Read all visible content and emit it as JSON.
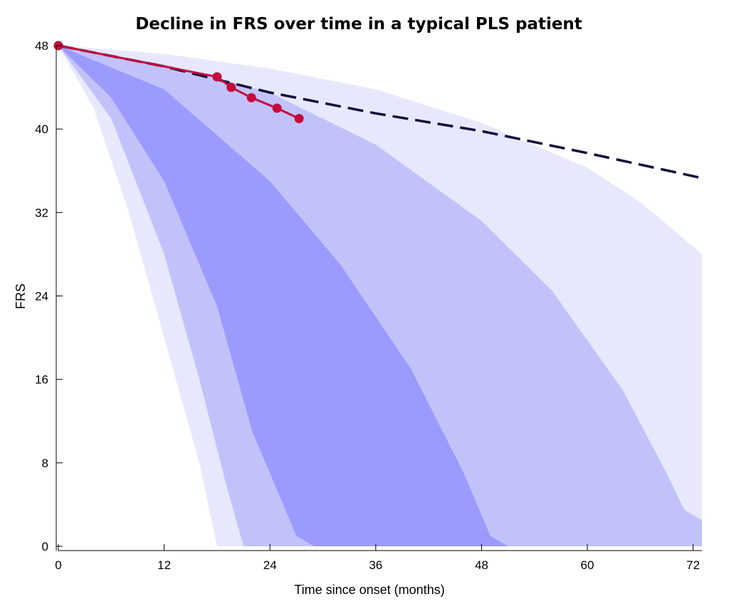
{
  "chart_data": {
    "type": "area",
    "title": "Decline in FRS over time in a typical PLS patient",
    "xlabel": "Time since onset (months)",
    "ylabel": "FRS",
    "xlim": [
      0,
      73
    ],
    "ylim": [
      0,
      48
    ],
    "xticks": [
      0,
      12,
      24,
      36,
      48,
      60,
      72
    ],
    "yticks": [
      0,
      8,
      16,
      24,
      32,
      40,
      48
    ],
    "xtick_labels": [
      "0",
      "12",
      "24",
      "36",
      "48",
      "60",
      "72"
    ],
    "ytick_labels": [
      "0",
      "8",
      "16",
      "24",
      "32",
      "40",
      "48"
    ],
    "grid": false,
    "bands": [
      {
        "color": "#e8e8fc",
        "lower": [
          [
            0,
            48
          ],
          [
            4,
            42
          ],
          [
            8,
            32
          ],
          [
            12,
            20
          ],
          [
            16,
            8
          ],
          [
            18,
            0
          ]
        ],
        "upper": [
          [
            0,
            48
          ],
          [
            12,
            47.2
          ],
          [
            24,
            45.8
          ],
          [
            36,
            43.8
          ],
          [
            48,
            40.6
          ],
          [
            60,
            36.3
          ],
          [
            66,
            33
          ],
          [
            73,
            28
          ]
        ]
      },
      {
        "color": "#c2c2fb",
        "lower": [
          [
            0,
            48
          ],
          [
            6,
            41
          ],
          [
            12,
            28
          ],
          [
            16,
            16
          ],
          [
            19,
            6
          ],
          [
            21,
            0
          ]
        ],
        "upper": [
          [
            0,
            48
          ],
          [
            12,
            46.2
          ],
          [
            24,
            43.5
          ],
          [
            36,
            38.5
          ],
          [
            48,
            31.2
          ],
          [
            56,
            24.5
          ],
          [
            64,
            15
          ],
          [
            69,
            7
          ],
          [
            71,
            3.5
          ],
          [
            73,
            2.5
          ]
        ]
      },
      {
        "color": "#9a9bfd",
        "lower": [
          [
            0,
            48
          ],
          [
            6,
            43
          ],
          [
            12,
            35
          ],
          [
            18,
            23
          ],
          [
            22,
            11
          ],
          [
            27,
            1
          ],
          [
            29,
            0
          ]
        ],
        "upper": [
          [
            0,
            48
          ],
          [
            12,
            43.8
          ],
          [
            24,
            35
          ],
          [
            32,
            27
          ],
          [
            40,
            17
          ],
          [
            46,
            7
          ],
          [
            49,
            1
          ],
          [
            51,
            0
          ]
        ]
      }
    ],
    "prediction": {
      "style": "dashed",
      "color": "#0d0d3a",
      "points": [
        [
          0,
          48
        ],
        [
          12,
          46
        ],
        [
          24,
          43.5
        ],
        [
          36,
          41.5
        ],
        [
          48,
          39.8
        ],
        [
          60,
          37.7
        ],
        [
          73,
          35.3
        ]
      ]
    },
    "observed": {
      "color": "#c40a3c",
      "points": [
        [
          0,
          48
        ],
        [
          18,
          45
        ],
        [
          19.6,
          44
        ],
        [
          21.9,
          43
        ],
        [
          24.8,
          42
        ],
        [
          27.3,
          41
        ]
      ]
    }
  }
}
